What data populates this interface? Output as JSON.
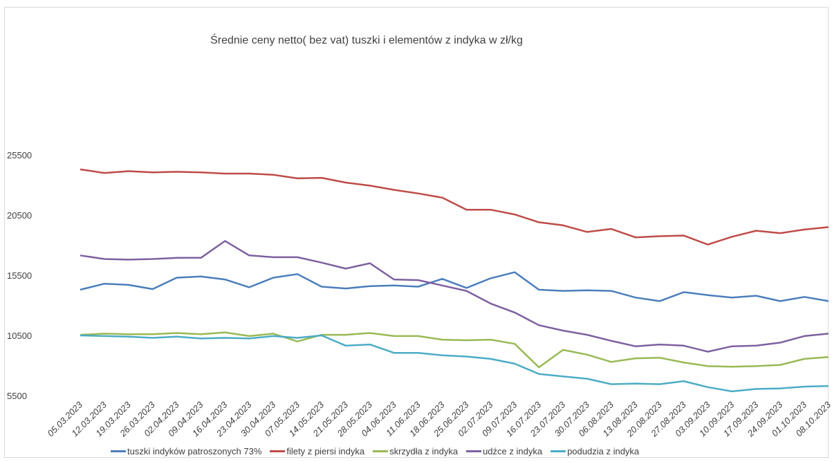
{
  "chart_data": {
    "type": "line",
    "title": "Średnie ceny netto( bez vat) tuszki i elementów z indyka w zł/kg",
    "xlabel": "",
    "ylabel": "",
    "ylim": [
      5500,
      25500
    ],
    "yticks": [
      "25500",
      "20500",
      "15500",
      "10500",
      "5500"
    ],
    "grid": false,
    "legend_position": "bottom",
    "categories": [
      "05.03.2023",
      "12.03.2023",
      "19.03.2023",
      "26.03.2023",
      "02.04.2023",
      "09.04.2023",
      "16.04.2023",
      "23.04.2023",
      "30.04.2023",
      "07.05.2023",
      "14.05.2023",
      "21.05.2023",
      "28.05.2023",
      "04.06.2023",
      "11.06.2023",
      "18.06.2023",
      "25.06.2023",
      "02.07.2023",
      "09.07.2023",
      "16.07.2023",
      "23.07.2023",
      "30.07.2023",
      "06.08.2023",
      "13.08.2023",
      "20.08.2023",
      "27.08.2023",
      "03.09.2023",
      "10.09.2023",
      "17.09.2023",
      "24.09.2023",
      "01.10.2023",
      "08.10.2023"
    ],
    "series": [
      {
        "name": "tuszki indyków patroszonych 73%",
        "color": "#4a7ebb",
        "values": [
          14300,
          14800,
          14700,
          14350,
          15300,
          15400,
          15150,
          14500,
          15300,
          15600,
          14550,
          14400,
          14600,
          14650,
          14550,
          15200,
          14450,
          15250,
          15750,
          14300,
          14200,
          14250,
          14200,
          13650,
          13350,
          14100,
          13850,
          13650,
          13800,
          13350,
          13700,
          13350
        ]
      },
      {
        "name": "filety z piersi indyka",
        "color": "#be4b48",
        "values": [
          24300,
          24000,
          24150,
          24050,
          24100,
          24050,
          23950,
          23950,
          23850,
          23550,
          23600,
          23200,
          22950,
          22600,
          22300,
          21950,
          20950,
          20950,
          20550,
          19900,
          19650,
          19100,
          19350,
          18650,
          18750,
          18800,
          18050,
          18700,
          19200,
          19000,
          19300,
          19500
        ]
      },
      {
        "name": "skrzydła z indyka",
        "color": "#98b954",
        "values": [
          10550,
          10650,
          10600,
          10600,
          10700,
          10600,
          10750,
          10450,
          10650,
          10000,
          10550,
          10550,
          10700,
          10450,
          10450,
          10150,
          10100,
          10150,
          9800,
          7850,
          9300,
          8900,
          8300,
          8600,
          8650,
          8250,
          7950,
          7900,
          7950,
          8050,
          8550,
          8700
        ]
      },
      {
        "name": "udźce z indyka",
        "color": "#7d60a0",
        "values": [
          17150,
          16850,
          16800,
          16850,
          16950,
          16950,
          18350,
          17150,
          17000,
          17000,
          16550,
          16050,
          16500,
          15150,
          15100,
          14650,
          14200,
          13150,
          12400,
          11350,
          10900,
          10550,
          10050,
          9600,
          9750,
          9650,
          9150,
          9600,
          9650,
          9900,
          10450,
          10650
        ]
      },
      {
        "name": "podudzia z indyka",
        "color": "#4bacc6",
        "values": [
          10500,
          10450,
          10400,
          10300,
          10400,
          10250,
          10300,
          10250,
          10450,
          10300,
          10500,
          9650,
          9750,
          9050,
          9050,
          8850,
          8750,
          8550,
          8150,
          7300,
          7100,
          6900,
          6450,
          6500,
          6450,
          6700,
          6200,
          5850,
          6050,
          6100,
          6250,
          6300
        ]
      }
    ]
  }
}
